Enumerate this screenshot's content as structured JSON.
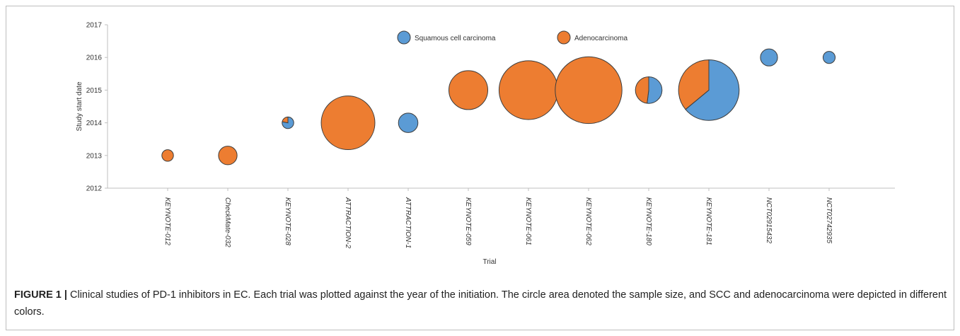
{
  "caption": {
    "label": "FIGURE 1 |",
    "text": " Clinical studies of PD-1 inhibitors in EC. Each trial was plotted against the year of the initiation. The circle area denoted the sample size, and SCC and adenocarcinoma were depicted in different colors."
  },
  "chart_data": {
    "type": "bubble-pie",
    "title": "",
    "xlabel": "Trial",
    "ylabel": "Study start date",
    "ylim": [
      2012,
      2017
    ],
    "yticks": [
      2012,
      2013,
      2014,
      2015,
      2016,
      2017
    ],
    "grid": false,
    "legend_position": "top-center",
    "series": [
      {
        "name": "Squamous cell carcinoma",
        "color": "#5b9bd5"
      },
      {
        "name": "Adenocarcinoma",
        "color": "#ed7d31"
      }
    ],
    "categories": [
      "KEYNOTE-012",
      "CheckMate-032",
      "KEYNOTE-028",
      "ATTRACTION-2",
      "ATTRACTION-1",
      "KEYNOTE-059",
      "KEYNOTE-061",
      "KEYNOTE-062",
      "KEYNOTE-180",
      "KEYNOTE-181",
      "NCT02915432",
      "NCT02742935"
    ],
    "points": [
      {
        "trial": "KEYNOTE-012",
        "year": 2013,
        "size": 23,
        "squamous_fraction": 0.0
      },
      {
        "trial": "CheckMate-032",
        "year": 2013,
        "size": 59,
        "squamous_fraction": 0.0
      },
      {
        "trial": "KEYNOTE-028",
        "year": 2014,
        "size": 23,
        "squamous_fraction": 0.78
      },
      {
        "trial": "ATTRACTION-2",
        "year": 2014,
        "size": 493,
        "squamous_fraction": 0.0
      },
      {
        "trial": "ATTRACTION-1",
        "year": 2014,
        "size": 65,
        "squamous_fraction": 1.0
      },
      {
        "trial": "KEYNOTE-059",
        "year": 2015,
        "size": 259,
        "squamous_fraction": 0.0
      },
      {
        "trial": "KEYNOTE-061",
        "year": 2015,
        "size": 592,
        "squamous_fraction": 0.0
      },
      {
        "trial": "KEYNOTE-062",
        "year": 2015,
        "size": 763,
        "squamous_fraction": 0.0
      },
      {
        "trial": "KEYNOTE-180",
        "year": 2015,
        "size": 121,
        "squamous_fraction": 0.52
      },
      {
        "trial": "KEYNOTE-181",
        "year": 2015,
        "size": 628,
        "squamous_fraction": 0.64
      },
      {
        "trial": "NCT02915432",
        "year": 2016,
        "size": 50,
        "squamous_fraction": 1.0
      },
      {
        "trial": "NCT02742935",
        "year": 2016,
        "size": 25,
        "squamous_fraction": 1.0
      }
    ]
  }
}
